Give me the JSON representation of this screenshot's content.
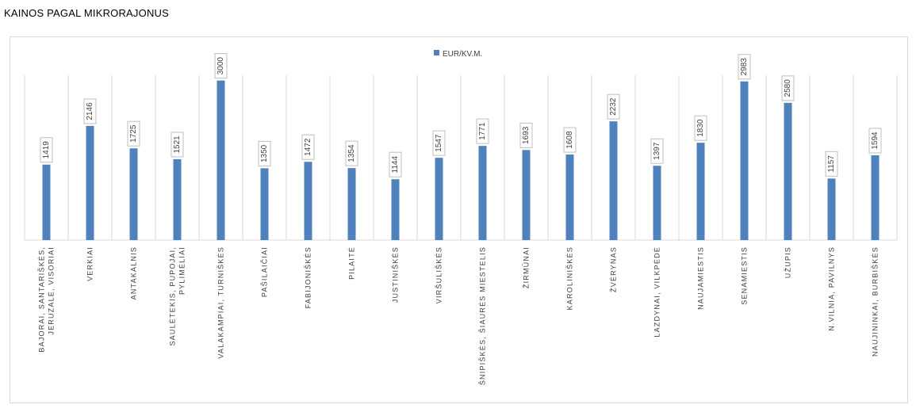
{
  "page": {
    "title": "KAINOS PAGAL MIKRORAJONUS"
  },
  "chart_data": {
    "type": "bar",
    "title": "",
    "xlabel": "",
    "ylabel": "",
    "ylim": [
      0,
      3300
    ],
    "legend": "top-center",
    "grid": "vertical-category-separators",
    "bar_color": "#4f81bd",
    "categories": [
      [
        "BAJORAI, SANTARIŠKĖS,",
        "JERUZALĖ, VISORIAI"
      ],
      [
        "VERKIAI"
      ],
      [
        "ANTAKALNIS"
      ],
      [
        "SAULĖTEKIS, PUPOJAI,",
        "PYLIMĖLIAI"
      ],
      [
        "VALAKAMPIAI, TURNIŠKĖS"
      ],
      [
        "PAŠILAIČIAI"
      ],
      [
        "FABIJONIŠKĖS"
      ],
      [
        "PILAITĖ"
      ],
      [
        "JUSTINIŠKĖS"
      ],
      [
        "VIRŠULIŠKĖS"
      ],
      [
        "ŠNIPIŠKĖS, ŠIAURĖS MIESTELIS"
      ],
      [
        "ŽIRMŪNAI"
      ],
      [
        "KAROLINIŠKĖS"
      ],
      [
        "ŽVĖRYNAS"
      ],
      [
        "LAZDYNAI, VILKPĖDĖ"
      ],
      [
        "NAUJAMIESTIS"
      ],
      [
        "SENAMIESTIS"
      ],
      [
        "UŽUPIS"
      ],
      [
        "N.VILNIA, PAVILNYS"
      ],
      [
        "NAUJININKAI, BURBIŠKĖS"
      ]
    ],
    "series": [
      {
        "name": "EUR/KV.M.",
        "color": "#4f81bd",
        "values": [
          1419,
          2146,
          1725,
          1521,
          3000,
          1350,
          1472,
          1354,
          1144,
          1547,
          1771,
          1693,
          1608,
          2232,
          1397,
          1830,
          2983,
          2580,
          1157,
          1594
        ]
      }
    ]
  }
}
